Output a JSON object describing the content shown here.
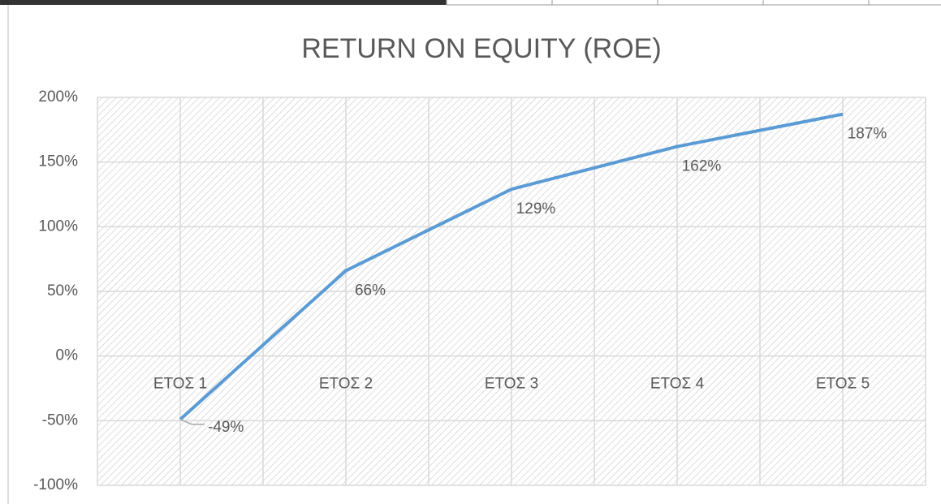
{
  "chart_data": {
    "type": "line",
    "title": "RETURN ON EQUITY (ROE)",
    "categories": [
      "ΕΤΟΣ 1",
      "ΕΤΟΣ 2",
      "ΕΤΟΣ 3",
      "ΕΤΟΣ 4",
      "ΕΤΟΣ 5"
    ],
    "series": [
      {
        "name": "ROE",
        "color": "#5b9bd5",
        "values": [
          -49,
          66,
          129,
          162,
          187
        ],
        "value_labels": [
          "-49%",
          "66%",
          "129%",
          "162%",
          "187%"
        ]
      }
    ],
    "ylim": [
      -100,
      200
    ],
    "yticks": [
      {
        "value": -100,
        "label": "-100%"
      },
      {
        "value": -50,
        "label": "-50%"
      },
      {
        "value": 0,
        "label": "0%"
      },
      {
        "value": 50,
        "label": "50%"
      },
      {
        "value": 100,
        "label": "100%"
      },
      {
        "value": 150,
        "label": "150%"
      },
      {
        "value": 200,
        "label": "200%"
      }
    ],
    "grid": true
  }
}
